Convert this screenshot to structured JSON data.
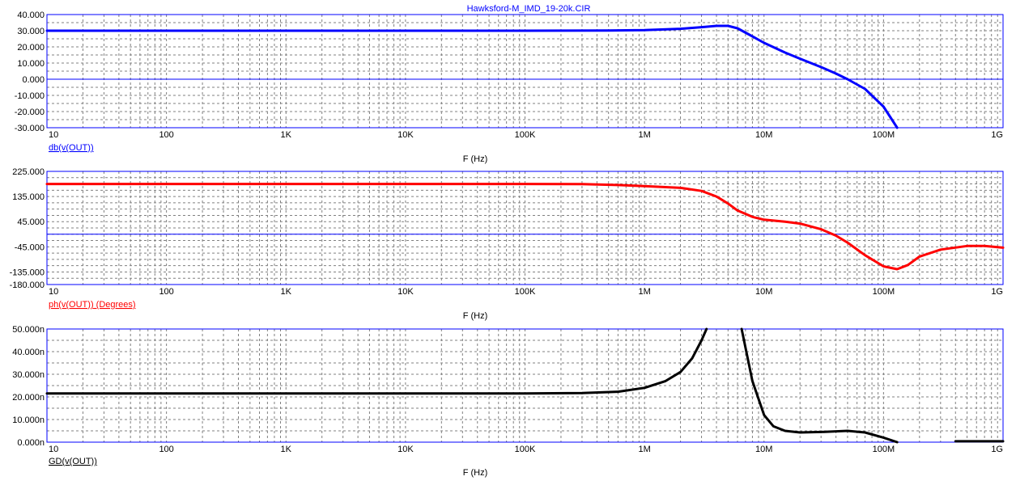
{
  "window": {
    "title": "Hawksford-M_IMD_19-20k.CIR"
  },
  "colors": {
    "axis": "#0000ff",
    "grid": "#808080",
    "tick_text": "#000000",
    "db_trace": "#0000ff",
    "phase_trace": "#ff0000",
    "gd_trace": "#000000"
  },
  "chart_data": [
    {
      "type": "line",
      "title": "Hawksford-M_IMD_19-20k.CIR",
      "xlabel": "F (Hz)",
      "ylabel": "db(v(OUT))",
      "xscale": "log",
      "xlim": [
        10,
        1000000000
      ],
      "xticks": [
        "10",
        "100",
        "1K",
        "10K",
        "100K",
        "1M",
        "10M",
        "100M",
        "1G"
      ],
      "ylim": [
        -30,
        40
      ],
      "yticks": [
        "40.000",
        "30.000",
        "20.000",
        "10.000",
        "0.000",
        "-10.000",
        "-20.000",
        "-30.000"
      ],
      "reference_line": 0,
      "grid": true,
      "series": [
        {
          "name": "db(v(OUT))",
          "x": [
            10,
            100,
            1000,
            10000,
            100000,
            500000,
            1000000,
            2000000,
            3000000,
            4000000,
            5000000,
            6000000,
            8000000,
            10000000,
            15000000,
            20000000,
            30000000,
            40000000,
            50000000,
            70000000,
            100000000,
            130000000
          ],
          "y": [
            30,
            30,
            30,
            30,
            30,
            30.1,
            30.4,
            31.2,
            32.2,
            33,
            33,
            31.5,
            26.5,
            22.5,
            16.5,
            12.7,
            7.5,
            3.5,
            0,
            -6,
            -17,
            -30
          ]
        }
      ]
    },
    {
      "type": "line",
      "xlabel": "F (Hz)",
      "ylabel": "ph(v(OUT)) (Degrees)",
      "xscale": "log",
      "xlim": [
        10,
        1000000000
      ],
      "xticks": [
        "10",
        "100",
        "1K",
        "10K",
        "100K",
        "1M",
        "10M",
        "100M",
        "1G"
      ],
      "ylim": [
        -180,
        225
      ],
      "yticks": [
        "225.000",
        "135.000",
        "45.000",
        "-45.000",
        "-135.000",
        "-180.000"
      ],
      "reference_line": 0,
      "grid": true,
      "series": [
        {
          "name": "ph(v(OUT)) (Degrees)",
          "x": [
            10,
            100,
            1000,
            10000,
            100000,
            300000,
            600000,
            1000000,
            2000000,
            3000000,
            4000000,
            5000000,
            6000000,
            8000000,
            10000000,
            15000000,
            20000000,
            30000000,
            40000000,
            50000000,
            70000000,
            100000000,
            130000000,
            160000000,
            200000000,
            300000000,
            500000000,
            700000000,
            1000000000
          ],
          "y": [
            180,
            180,
            180,
            180,
            180,
            179.5,
            176,
            172,
            166,
            155,
            135,
            110,
            85,
            62,
            52,
            45,
            38,
            18,
            -5,
            -30,
            -75,
            -115,
            -125,
            -110,
            -80,
            -55,
            -42,
            -42,
            -48
          ]
        }
      ]
    },
    {
      "type": "line",
      "xlabel": "F (Hz)",
      "ylabel": "GD(v(OUT))",
      "xscale": "log",
      "xlim": [
        10,
        1000000000
      ],
      "xticks": [
        "10",
        "100",
        "1K",
        "10K",
        "100K",
        "1M",
        "10M",
        "100M",
        "1G"
      ],
      "ylim": [
        0,
        50
      ],
      "yticks": [
        "50.000n",
        "40.000n",
        "30.000n",
        "20.000n",
        "10.000n",
        "0.000n"
      ],
      "grid": true,
      "series": [
        {
          "name": "GD(v(OUT))",
          "segments": [
            {
              "x": [
                10,
                100,
                1000,
                10000,
                100000,
                300000,
                600000,
                1000000,
                1500000,
                2000000,
                2500000,
                3000000,
                3300000
              ],
              "y": [
                21.5,
                21.5,
                21.5,
                21.5,
                21.5,
                21.7,
                22.3,
                24,
                27,
                31,
                37,
                45,
                50
              ]
            },
            {
              "x": [
                6500000,
                8000000,
                10000000,
                12000000,
                15000000,
                20000000,
                30000000,
                50000000,
                70000000,
                100000000,
                130000000
              ],
              "y": [
                50,
                27,
                12,
                7,
                5,
                4.3,
                4.5,
                5,
                4.3,
                2,
                0
              ]
            },
            {
              "x": [
                400000000,
                1000000000
              ],
              "y": [
                0.4,
                0.4
              ]
            }
          ]
        }
      ]
    }
  ]
}
